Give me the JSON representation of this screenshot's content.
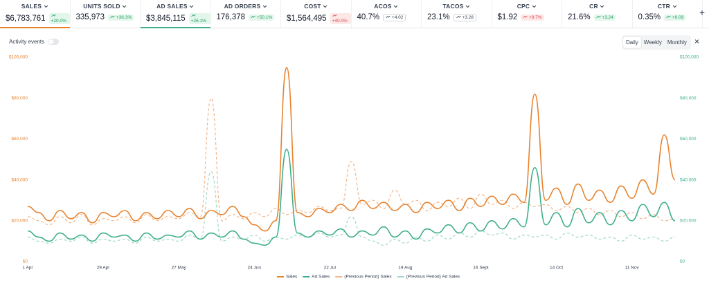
{
  "metrics": [
    {
      "label": "SALES",
      "value": "$6,783,761",
      "change": "+20.0%",
      "badge": "green",
      "underline": "#e8822e"
    },
    {
      "label": "UNITS SOLD",
      "value": "335,973",
      "change": "+36.3%",
      "badge": "green"
    },
    {
      "label": "AD SALES",
      "value": "$3,845,115",
      "change": "+26.1%",
      "badge": "green",
      "underline": "#3eae8c"
    },
    {
      "label": "AD ORDERS",
      "value": "176,378",
      "change": "+50.1%",
      "badge": "green"
    },
    {
      "label": "COST",
      "value": "$1,564,495",
      "change": "+40.0%",
      "badge": "red"
    },
    {
      "label": "ACOS",
      "value": "40.7%",
      "change": "+4.02",
      "badge": "grey"
    },
    {
      "label": "TACOS",
      "value": "23.1%",
      "change": "+3.28",
      "badge": "grey"
    },
    {
      "label": "CPC",
      "value": "$1.92",
      "change": "+9.7%",
      "badge": "red"
    },
    {
      "label": "CR",
      "value": "21.6%",
      "change": "+3.24",
      "badge": "green"
    },
    {
      "label": "CTR",
      "value": "0.35%",
      "change": "+0.09",
      "badge": "green"
    }
  ],
  "add_button": "+",
  "activity_label": "Activity events",
  "periods": [
    "Daily",
    "Weekly",
    "Monthly"
  ],
  "close": "×",
  "chart_data": {
    "type": "line",
    "categories": [
      "1 Apr",
      null,
      null,
      null,
      null,
      null,
      null,
      "29 Apr",
      null,
      null,
      null,
      null,
      null,
      null,
      "27 May",
      null,
      null,
      null,
      null,
      null,
      null,
      "24 Jun",
      null,
      null,
      null,
      null,
      null,
      null,
      "22 Jul",
      null,
      null,
      null,
      null,
      null,
      null,
      "19 Aug",
      null,
      null,
      null,
      null,
      null,
      null,
      "16 Sept",
      null,
      null,
      null,
      null,
      null,
      null,
      "14 Oct",
      null,
      null,
      null,
      null,
      null,
      null,
      "11 Nov",
      null,
      null,
      null,
      null
    ],
    "series": [
      {
        "name": "Sales",
        "color": "#e8822e",
        "dashed": false,
        "values": [
          27000,
          24000,
          20000,
          25000,
          21000,
          24000,
          19000,
          24000,
          22000,
          25000,
          20000,
          24000,
          21000,
          25000,
          22000,
          26000,
          21000,
          25000,
          23000,
          27000,
          22000,
          18000,
          15000,
          20000,
          95000,
          24000,
          22000,
          26000,
          24000,
          28000,
          25000,
          30000,
          26000,
          29000,
          25000,
          28000,
          24000,
          29000,
          26000,
          30000,
          25000,
          31000,
          27000,
          32000,
          28000,
          33000,
          29000,
          82000,
          30000,
          36000,
          28000,
          38000,
          30000,
          35000,
          29000,
          37000,
          31000,
          40000,
          33000,
          62000,
          40000
        ]
      },
      {
        "name": "Ad Sales",
        "color": "#3eae8c",
        "dashed": false,
        "axis": "y2",
        "values": [
          15000,
          12000,
          10000,
          14000,
          11000,
          13000,
          10000,
          14000,
          12000,
          13000,
          10000,
          14000,
          11000,
          13000,
          12000,
          15000,
          11000,
          14000,
          12000,
          15000,
          11000,
          9000,
          8000,
          12000,
          55000,
          14000,
          12000,
          15000,
          13000,
          16000,
          12000,
          15000,
          13000,
          17000,
          12000,
          15000,
          11000,
          16000,
          14000,
          18000,
          14000,
          19000,
          15000,
          20000,
          16000,
          21000,
          17000,
          46000,
          18000,
          24000,
          17000,
          26000,
          19000,
          24000,
          18000,
          25000,
          20000,
          28000,
          22000,
          29000,
          20000
        ]
      },
      {
        "name": "(Previous Period) Sales",
        "color": "#f2b68a",
        "dashed": true,
        "values": [
          22000,
          20000,
          18000,
          22000,
          19000,
          23000,
          18000,
          21000,
          20000,
          22000,
          19000,
          23000,
          20000,
          22000,
          21000,
          24000,
          22000,
          80000,
          20000,
          23000,
          21000,
          24000,
          22000,
          26000,
          23000,
          25000,
          24000,
          27000,
          25000,
          26000,
          49000,
          28000,
          30000,
          26000,
          35000,
          28000,
          30000,
          25000,
          29000,
          27000,
          31000,
          26000,
          33000,
          28000,
          30000,
          26000,
          29000,
          27000,
          28000,
          25000,
          27000,
          24000,
          26000,
          23000,
          25000,
          22000,
          24000,
          21000,
          23000,
          20000,
          21000
        ]
      },
      {
        "name": "(Previous Period) Ad Sales",
        "color": "#9fd8c5",
        "dashed": true,
        "axis": "y2",
        "values": [
          12000,
          10000,
          9000,
          11000,
          10000,
          12000,
          9000,
          11000,
          10000,
          11000,
          9000,
          12000,
          10000,
          11000,
          10000,
          13000,
          11000,
          44000,
          10000,
          12000,
          11000,
          13000,
          10000,
          12000,
          11000,
          13000,
          12000,
          14000,
          12000,
          13000,
          22000,
          12000,
          10000,
          8000,
          11000,
          9000,
          12000,
          10000,
          13000,
          11000,
          14000,
          12000,
          15000,
          13000,
          14000,
          11000,
          13000,
          12000,
          13000,
          11000,
          14000,
          12000,
          13000,
          11000,
          12000,
          10000,
          13000,
          11000,
          12000,
          10000,
          12000
        ]
      }
    ],
    "ylim": [
      0,
      100000
    ],
    "yticks": [
      {
        "value": 0,
        "label": "$0"
      },
      {
        "value": 20000,
        "label": "$20,000"
      },
      {
        "value": 40000,
        "label": "$40,000"
      },
      {
        "value": 60000,
        "label": "$60,000"
      },
      {
        "value": 80000,
        "label": "$80,000"
      },
      {
        "value": 100000,
        "label": "$100,000"
      }
    ],
    "y2lim": [
      0,
      100000
    ],
    "y2ticks": [
      {
        "value": 0,
        "label": "$0"
      },
      {
        "value": 20000,
        "label": "$20,000"
      },
      {
        "value": 40000,
        "label": "$40,000"
      },
      {
        "value": 60000,
        "label": "$60,000"
      },
      {
        "value": 80000,
        "label": "$80,000"
      },
      {
        "value": 100000,
        "label": "$100,000"
      }
    ],
    "ytick_color": "#e8822e",
    "y2tick_color": "#3eae8c"
  }
}
